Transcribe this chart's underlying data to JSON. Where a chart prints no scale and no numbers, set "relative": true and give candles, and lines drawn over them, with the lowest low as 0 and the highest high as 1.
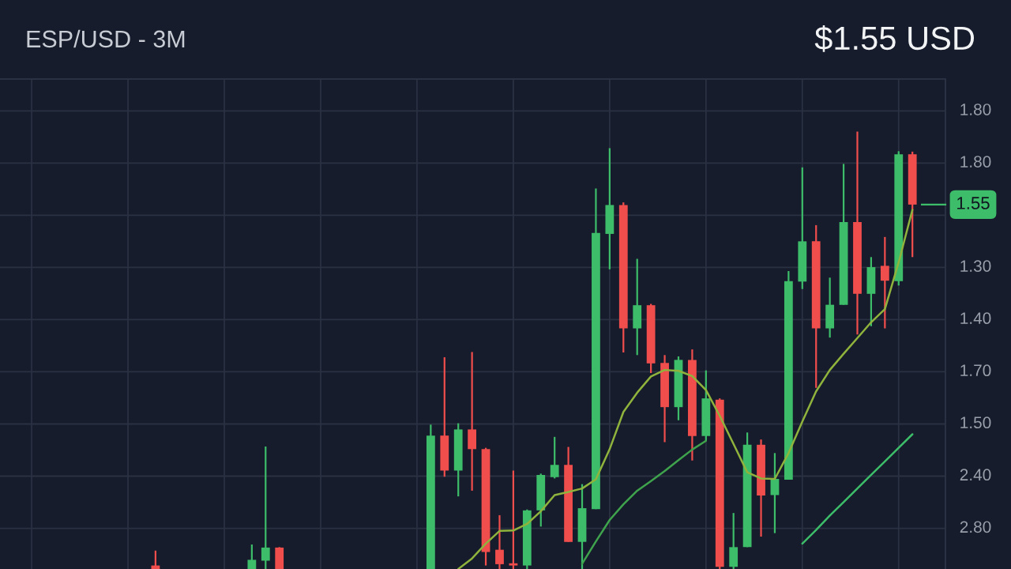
{
  "chart_data": {
    "type": "candlestick",
    "title": "ESP/USD - 3M",
    "relative": true,
    "annotations": [
      "$1.55 USD",
      "1.80",
      "1.80",
      "1.30",
      "1.40",
      "1.70",
      "1.50",
      "2.40",
      "2.80",
      "1.55"
    ],
    "categories": [
      null,
      null,
      null,
      null,
      null,
      null,
      null,
      null,
      null,
      null,
      null,
      null,
      null,
      null,
      null,
      null,
      null,
      null,
      null,
      null,
      null,
      null,
      null,
      null,
      null,
      null,
      null,
      null,
      null,
      null,
      null,
      null,
      null,
      null,
      null,
      null,
      null,
      null,
      null,
      null,
      null,
      null,
      null,
      null,
      null,
      null,
      null,
      null,
      null,
      null,
      null,
      null,
      null,
      null,
      null,
      null,
      null,
      null,
      null,
      null,
      null,
      null,
      null,
      null,
      null,
      null
    ],
    "ohlc": [
      null,
      null,
      null,
      null,
      null,
      null,
      null,
      null,
      null,
      null,
      [
        0.008,
        0.042,
        0,
        0
      ],
      null,
      null,
      null,
      null,
      null,
      null,
      [
        0,
        0.056,
        0,
        0.021
      ],
      [
        0.019,
        0.28,
        0,
        0.049
      ],
      [
        0.049,
        0.05,
        0,
        0
      ],
      null,
      null,
      null,
      null,
      null,
      null,
      null,
      null,
      null,
      null,
      [
        0,
        0.33,
        0,
        0.305
      ],
      [
        0.305,
        0.484,
        0.211,
        0.225
      ],
      [
        0.225,
        0.333,
        0.166,
        0.319
      ],
      [
        0.319,
        0.496,
        0.179,
        0.274
      ],
      [
        0.274,
        0.277,
        0.008,
        0.039
      ],
      [
        0.044,
        0.123,
        0,
        0.011
      ],
      [
        0.013,
        0.225,
        0,
        0.008
      ],
      [
        0.008,
        0.136,
        0,
        0.134
      ],
      [
        0.134,
        0.218,
        0.097,
        0.215
      ],
      [
        0.21,
        0.302,
        0.207,
        0.238
      ],
      [
        0.238,
        0.279,
        0.062,
        0.062
      ],
      [
        0.062,
        0.194,
        0,
        0.139
      ],
      [
        0.137,
        0.87,
        0.137,
        0.768
      ],
      [
        0.766,
        0.962,
        0.685,
        0.832
      ],
      [
        0.832,
        0.838,
        0.495,
        0.55
      ],
      [
        0.55,
        0.709,
        0.489,
        0.603
      ],
      [
        0.603,
        0.606,
        0.448,
        0.47
      ],
      [
        0.471,
        0.489,
        0.29,
        0.37
      ],
      [
        0.37,
        0.486,
        0.34,
        0.478
      ],
      [
        0.478,
        0.502,
        0.248,
        0.304
      ],
      [
        0.304,
        0.454,
        0.293,
        0.39
      ],
      [
        0.387,
        0.39,
        0,
        0.005
      ],
      [
        0.005,
        0.128,
        0,
        0.05
      ],
      [
        0.05,
        0.312,
        0.05,
        0.284
      ],
      [
        0.284,
        0.296,
        0.074,
        0.168
      ],
      [
        0.169,
        0.265,
        0.082,
        0.206
      ],
      [
        0.204,
        0.681,
        0.204,
        0.658
      ],
      [
        0.657,
        0.918,
        0.64,
        0.749
      ],
      [
        0.749,
        0.786,
        0.414,
        0.55
      ],
      [
        0.55,
        0.666,
        0.529,
        0.604
      ],
      [
        0.604,
        0.926,
        0.604,
        0.793
      ],
      [
        0.793,
        1,
        0.536,
        0.629
      ],
      [
        0.629,
        0.713,
        0.555,
        0.69
      ],
      [
        0.693,
        0.759,
        0.55,
        0.659
      ],
      [
        0.658,
        0.955,
        0.648,
        0.948
      ],
      [
        0.948,
        0.954,
        0.713,
        0.833
      ]
    ],
    "colors": [
      null,
      null,
      null,
      null,
      null,
      null,
      null,
      null,
      null,
      null,
      "#f04d4d",
      null,
      null,
      null,
      null,
      null,
      null,
      "#3dbd6a",
      "#3dbd6a",
      "#f04d4d",
      null,
      null,
      null,
      null,
      null,
      null,
      null,
      null,
      null,
      null,
      "#3dbd6a",
      "#f04d4d",
      "#3dbd6a",
      "#f04d4d",
      "#f04d4d",
      "#f04d4d",
      "#f04d4d",
      "#3dbd6a",
      "#3dbd6a",
      "#3dbd6a",
      "#f04d4d",
      "#3dbd6a",
      "#3dbd6a",
      "#3dbd6a",
      "#f04d4d",
      "#3dbd6a",
      "#f04d4d",
      "#f04d4d",
      "#3dbd6a",
      "#f04d4d",
      "#3dbd6a",
      "#f04d4d",
      "#3dbd6a",
      "#3dbd6a",
      "#f04d4d",
      "#3dbd6a",
      "#3dbd6a",
      "#3dbd6a",
      "#f04d4d",
      "#3dbd6a",
      "#3dbd6a",
      "#f04d4d",
      "#3dbd6a",
      "#f04d4d",
      "#3dbd6a",
      "#f04d4d"
    ],
    "series": [
      {
        "type": "line",
        "color": "#8fb33c",
        "values": [
          null,
          null,
          null,
          null,
          null,
          null,
          null,
          null,
          null,
          null,
          null,
          null,
          null,
          null,
          null,
          null,
          null,
          null,
          null,
          null,
          null,
          null,
          null,
          null,
          null,
          null,
          null,
          null,
          null,
          null,
          null,
          null,
          0,
          0.024,
          0.058,
          0.087,
          0.088,
          0.103,
          0.132,
          0.169,
          0.176,
          0.184,
          0.205,
          0.274,
          0.359,
          0.403,
          0.44,
          0.455,
          0.453,
          0.441,
          0.409,
          0.35,
          0.286,
          0.221,
          0.207,
          0.206,
          0.265,
          0.337,
          0.406,
          0.455,
          0.492,
          0.528,
          0.564,
          0.594,
          0.701,
          0.821
        ]
      },
      {
        "type": "line",
        "color": "#3fa34d",
        "values": [
          null,
          null,
          null,
          null,
          null,
          null,
          null,
          null,
          null,
          null,
          null,
          null,
          null,
          null,
          null,
          null,
          null,
          null,
          null,
          null,
          null,
          null,
          null,
          null,
          null,
          null,
          null,
          null,
          null,
          null,
          null,
          null,
          null,
          null,
          null,
          null,
          null,
          null,
          null,
          null,
          null,
          0.012,
          0.063,
          0.112,
          0.148,
          0.179,
          0.201,
          0.224,
          0.249,
          0.273,
          0.293,
          null,
          null,
          null,
          null,
          null,
          null,
          null,
          null,
          null,
          null,
          null,
          null,
          null,
          null,
          null
        ]
      },
      {
        "type": "line",
        "color": "#3dbd6a",
        "values": [
          null,
          null,
          null,
          null,
          null,
          null,
          null,
          null,
          null,
          null,
          null,
          null,
          null,
          null,
          null,
          null,
          null,
          null,
          null,
          null,
          null,
          null,
          null,
          null,
          null,
          null,
          null,
          null,
          null,
          null,
          null,
          null,
          null,
          null,
          null,
          null,
          null,
          null,
          null,
          null,
          null,
          null,
          null,
          null,
          null,
          null,
          null,
          null,
          null,
          null,
          null,
          null,
          null,
          null,
          null,
          null,
          null,
          0.058,
          0.089,
          0.122,
          0.153,
          0.184,
          0.215,
          0.246,
          0.277,
          0.308
        ]
      }
    ],
    "grid": true
  }
}
